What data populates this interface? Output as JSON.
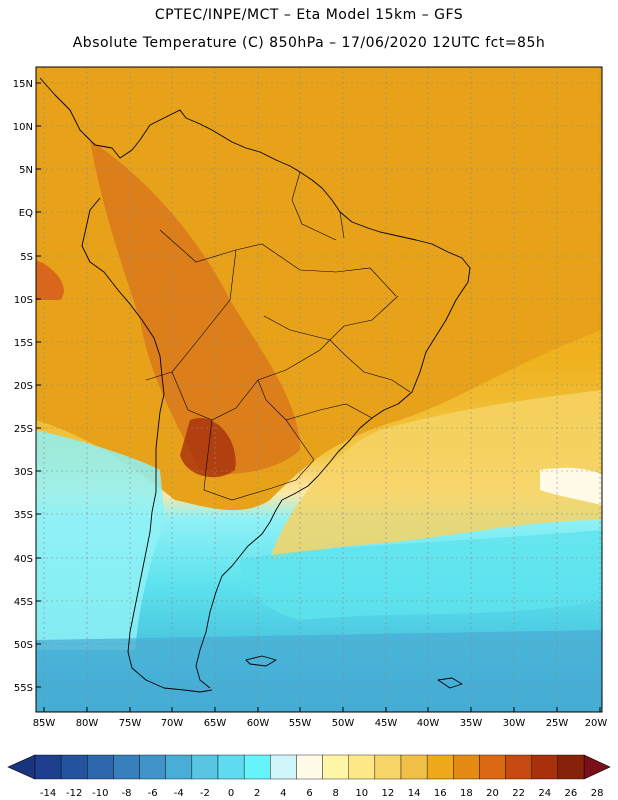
{
  "header": {
    "line1": "CPTEC/INPE/MCT –  Eta Model 15km – GFS",
    "line2": "Absolute Temperature (C) 850hPa – 17/06/2020 12UTC fct=85h"
  },
  "map": {
    "lat_labels": [
      "15N",
      "10N",
      "5N",
      "EQ",
      "5S",
      "10S",
      "15S",
      "20S",
      "25S",
      "30S",
      "35S",
      "40S",
      "45S",
      "50S",
      "55S"
    ],
    "lon_labels": [
      "85W",
      "80W",
      "75W",
      "70W",
      "65W",
      "60W",
      "55W",
      "50W",
      "45W",
      "40W",
      "35W",
      "30W",
      "25W",
      "20W"
    ],
    "colors": {
      "warm_orange": "#e8a21a",
      "deep_orange": "#d9791c",
      "yellow": "#f3c94a",
      "pale_yellow": "#fbe9a3",
      "cyan": "#5ee3ee",
      "light_cyan": "#8ff1f6",
      "blue": "#3fb3d5",
      "deep_blue": "#2f93c4",
      "border": "#000000"
    }
  },
  "colorbar": {
    "labels": [
      "-14",
      "-12",
      "-10",
      "-8",
      "-6",
      "-4",
      "-2",
      "0",
      "2",
      "4",
      "6",
      "8",
      "10",
      "12",
      "14",
      "16",
      "18",
      "20",
      "22",
      "24",
      "26",
      "28"
    ],
    "colors": [
      "#1e3f8e",
      "#23529e",
      "#2d67ae",
      "#3880bb",
      "#3f95c7",
      "#49aed6",
      "#57c6e3",
      "#5fdbef",
      "#66f4fb",
      "#cff6fb",
      "#fffbe8",
      "#fff6a8",
      "#fce887",
      "#f6d465",
      "#f0c046",
      "#eeaa1a",
      "#e58a12",
      "#db6812",
      "#c64a10",
      "#a8300d",
      "#862209"
    ]
  }
}
